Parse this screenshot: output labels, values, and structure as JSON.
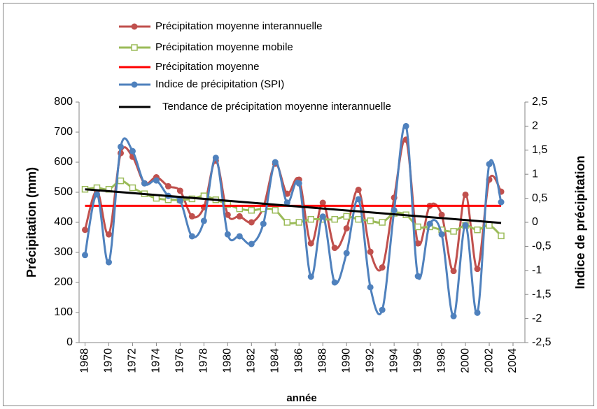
{
  "chart_data": {
    "type": "line",
    "x": [
      1968,
      1969,
      1970,
      1971,
      1972,
      1973,
      1974,
      1975,
      1976,
      1977,
      1978,
      1979,
      1980,
      1981,
      1982,
      1983,
      1984,
      1985,
      1986,
      1987,
      1988,
      1989,
      1990,
      1991,
      1992,
      1993,
      1994,
      1995,
      1996,
      1997,
      1998,
      1999,
      2000,
      2001,
      2002,
      2003
    ],
    "xlabel": "année",
    "ylabel": "Précipitation (mm)",
    "y2label": "Indice de précipitation",
    "xlim": [
      1967.5,
      2005
    ],
    "xticks": [
      1968,
      1970,
      1972,
      1974,
      1976,
      1978,
      1980,
      1982,
      1984,
      1986,
      1988,
      1990,
      1992,
      1994,
      1996,
      1998,
      2000,
      2002,
      2004
    ],
    "ylim": [
      0,
      800
    ],
    "yticks": [
      0,
      100,
      200,
      300,
      400,
      500,
      600,
      700,
      800
    ],
    "y2lim": [
      -2.5,
      2.5
    ],
    "y2ticks": [
      {
        "value": -2.5,
        "label": "-2,5"
      },
      -2,
      {
        "value": -1.5,
        "label": "-1,5"
      },
      -1,
      {
        "value": -0.5,
        "label": "-0,5"
      },
      0,
      {
        "value": 0.5,
        "label": "0,5"
      },
      1,
      {
        "value": 1.5,
        "label": "1,5"
      },
      2,
      {
        "value": 2.5,
        "label": "2,5"
      }
    ],
    "grid": false,
    "series": [
      {
        "name": "Précipitation moyenne interannuelle",
        "color": "#c0504d",
        "marker": "circle",
        "values": [
          375,
          505,
          360,
          630,
          618,
          530,
          550,
          520,
          505,
          420,
          450,
          605,
          425,
          420,
          400,
          450,
          595,
          495,
          542,
          330,
          465,
          315,
          380,
          508,
          302,
          250,
          482,
          675,
          330,
          455,
          425,
          238,
          492,
          245,
          542,
          502
        ]
      },
      {
        "name": "Précipitation moyenne mobile",
        "color": "#9bbb59",
        "marker": "square",
        "values": [
          510,
          515,
          510,
          538,
          515,
          495,
          480,
          475,
          475,
          478,
          488,
          475,
          460,
          445,
          440,
          445,
          440,
          400,
          400,
          410,
          410,
          410,
          420,
          410,
          405,
          400,
          430,
          425,
          385,
          385,
          375,
          370,
          390,
          375,
          390,
          355
        ]
      },
      {
        "name": "Précipitation moyenne",
        "color": "#ff0000",
        "marker": "none",
        "values": [
          455,
          455,
          455,
          455,
          455,
          455,
          455,
          455,
          455,
          455,
          455,
          455,
          455,
          455,
          455,
          455,
          455,
          455,
          455,
          455,
          455,
          455,
          455,
          455,
          455,
          455,
          455,
          455,
          455,
          455,
          455,
          455,
          455,
          455,
          455,
          455
        ]
      },
      {
        "name": "Indice de précipitation (SPI)",
        "color": "#4f81bd",
        "marker": "circle",
        "axis": "y2",
        "values": [
          -0.68,
          0.58,
          -0.83,
          1.57,
          1.48,
          0.81,
          0.87,
          0.55,
          0.45,
          -0.29,
          0.03,
          1.34,
          -0.25,
          -0.29,
          -0.45,
          -0.03,
          1.25,
          0.41,
          0.81,
          -1.13,
          0.12,
          -1.25,
          -0.64,
          0.48,
          -1.35,
          -1.82,
          0.25,
          2.0,
          -1.12,
          -0.03,
          -0.25,
          -1.95,
          -0.06,
          -1.88,
          1.21,
          0.42
        ]
      },
      {
        "name": "Tendance de précipitation moyenne interannuelle",
        "color": "#000000",
        "marker": "none",
        "x": [
          1968,
          2003
        ],
        "values": [
          510,
          398
        ]
      }
    ]
  }
}
